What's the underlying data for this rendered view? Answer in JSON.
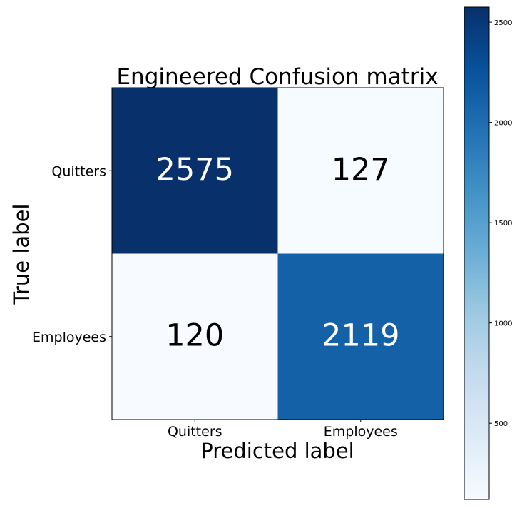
{
  "chart_data": {
    "type": "heatmap",
    "title": "Engineered Confusion matrix",
    "xlabel": "Predicted label",
    "ylabel": "True label",
    "x_categories": [
      "Quitters",
      "Employees"
    ],
    "y_categories": [
      "Quitters",
      "Employees"
    ],
    "values": [
      [
        2575,
        127
      ],
      [
        120,
        2119
      ]
    ],
    "colormap": "Blues",
    "color_range": [
      120,
      2575
    ],
    "colorbar_ticks": [
      500,
      1000,
      1500,
      2000,
      2500
    ],
    "colorbar_tick_labels": [
      "500",
      "1000",
      "1500",
      "2000",
      "2500"
    ],
    "text_colors": {
      "dark_cell": "#ffffff",
      "light_cell": "#000000"
    }
  }
}
